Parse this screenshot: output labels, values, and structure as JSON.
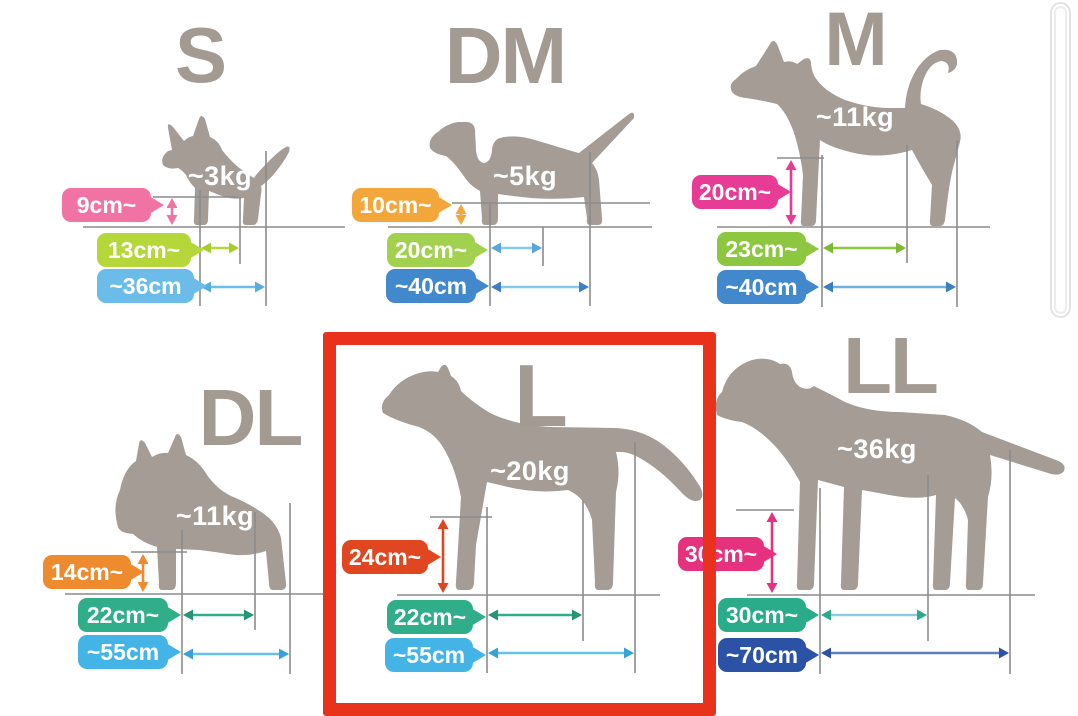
{
  "figure": {
    "type": "dog-apparel-size-chart",
    "highlighted_size": "L"
  },
  "palette": {
    "background": "#ffffff",
    "silhouette": "#a49c95",
    "title_text": "#a39a92",
    "guide_line": "#8c8c8c",
    "weight_text": "#ffffff",
    "highlight_box": "#e8321c"
  },
  "sizes": [
    {
      "code": "S",
      "weight": "~3kg",
      "silhouette": "chihuahua",
      "measurements": [
        {
          "label": "9cm~",
          "color": "#f173a3",
          "arrow_color": "#f173a3",
          "head_color": "#f173a3",
          "orientation": "vertical"
        },
        {
          "label": "13cm~",
          "color": "#b5d739",
          "arrow_color": "#b5d739",
          "head_color": "#a8cc2e",
          "orientation": "horizontal"
        },
        {
          "label": "~36cm",
          "color": "#6bbce8",
          "arrow_color": "#6bbce8",
          "head_color": "#55aede",
          "orientation": "horizontal"
        }
      ]
    },
    {
      "code": "DM",
      "weight": "~5kg",
      "silhouette": "dachshund",
      "measurements": [
        {
          "label": "10cm~",
          "color": "#f3a73a",
          "arrow_color": "#f3a73a",
          "head_color": "#f3a73a",
          "orientation": "vertical"
        },
        {
          "label": "20cm~",
          "color": "#a2d14f",
          "arrow_color": "#85c9ec",
          "head_color": "#5aa7dc",
          "orientation": "horizontal"
        },
        {
          "label": "~40cm",
          "color": "#4288cc",
          "arrow_color": "#85c9ec",
          "head_color": "#3d7fc1",
          "orientation": "horizontal"
        }
      ]
    },
    {
      "code": "M",
      "weight": "~11kg",
      "silhouette": "shiba-inu",
      "measurements": [
        {
          "label": "20cm~",
          "color": "#e73c96",
          "arrow_color": "#e73c96",
          "head_color": "#e73c96",
          "orientation": "vertical"
        },
        {
          "label": "23cm~",
          "color": "#8dc63f",
          "arrow_color": "#8dc63f",
          "head_color": "#7cba32",
          "orientation": "horizontal"
        },
        {
          "label": "~40cm",
          "color": "#4288cc",
          "arrow_color": "#6fb0dd",
          "head_color": "#3d7fc1",
          "orientation": "horizontal"
        }
      ]
    },
    {
      "code": "DL",
      "weight": "~11kg",
      "silhouette": "french-bulldog",
      "measurements": [
        {
          "label": "14cm~",
          "color": "#ee8b2e",
          "arrow_color": "#ee8b2e",
          "head_color": "#ee8b2e",
          "orientation": "vertical"
        },
        {
          "label": "22cm~",
          "color": "#2fae89",
          "arrow_color": "#2fae89",
          "head_color": "#279478",
          "orientation": "horizontal"
        },
        {
          "label": "~55cm",
          "color": "#44b4e6",
          "arrow_color": "#63c1ea",
          "head_color": "#35a3d8",
          "orientation": "horizontal"
        }
      ]
    },
    {
      "code": "L",
      "weight": "~20kg",
      "silhouette": "medium-mixed-breed",
      "highlighted": true,
      "measurements": [
        {
          "label": "24cm~",
          "color": "#e0461f",
          "arrow_color": "#e0461f",
          "head_color": "#e0461f",
          "orientation": "vertical"
        },
        {
          "label": "22cm~",
          "color": "#2fae89",
          "arrow_color": "#2fae89",
          "head_color": "#279478",
          "orientation": "horizontal"
        },
        {
          "label": "~55cm",
          "color": "#44b4e6",
          "arrow_color": "#63c1ea",
          "head_color": "#35a3d8",
          "orientation": "horizontal"
        }
      ]
    },
    {
      "code": "LL",
      "weight": "~36kg",
      "silhouette": "labrador",
      "measurements": [
        {
          "label": "30cm~",
          "color": "#e6317e",
          "arrow_color": "#e6317e",
          "head_color": "#e6317e",
          "orientation": "vertical"
        },
        {
          "label": "30cm~",
          "color": "#2aab8a",
          "arrow_color": "#8ecbe0",
          "head_color": "#2aab8a",
          "orientation": "horizontal"
        },
        {
          "label": "~70cm",
          "color": "#2b52a5",
          "arrow_color": "#5d7fb9",
          "head_color": "#2b52a5",
          "orientation": "horizontal"
        }
      ]
    }
  ]
}
